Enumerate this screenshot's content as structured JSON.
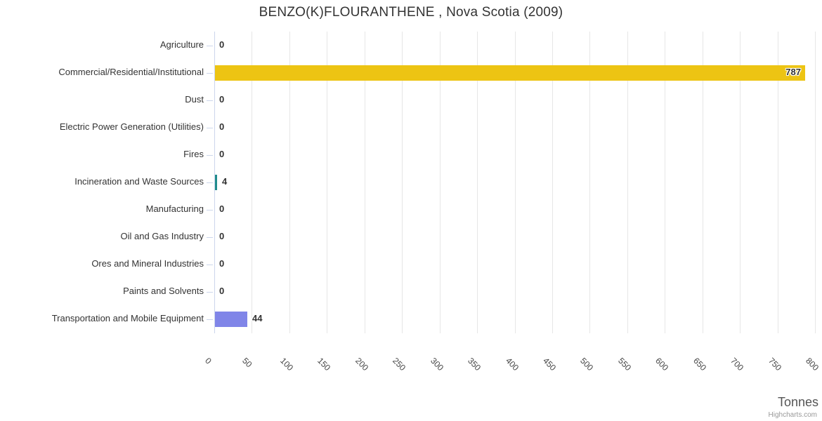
{
  "chart_data": {
    "type": "bar",
    "orientation": "horizontal",
    "title": "BENZO(K)FLOURANTHENE , Nova Scotia (2009)",
    "categories": [
      "Agriculture",
      "Commercial/Residential/Institutional",
      "Dust",
      "Electric Power Generation (Utilities)",
      "Fires",
      "Incineration and Waste Sources",
      "Manufacturing",
      "Oil and Gas Industry",
      "Ores and Mineral Industries",
      "Paints and Solvents",
      "Transportation and Mobile Equipment"
    ],
    "values": [
      0,
      787,
      0,
      0,
      0,
      4,
      0,
      0,
      0,
      0,
      44
    ],
    "data_labels": [
      "0",
      "787",
      "0",
      "0",
      "0",
      "4",
      "0",
      "0",
      "0",
      "0",
      "44"
    ],
    "point_colors": [
      null,
      "#edc413",
      null,
      null,
      null,
      "#218c8d",
      null,
      null,
      null,
      null,
      "#8085e8"
    ],
    "xlabel": "Tonnes",
    "ylabel": "",
    "value_axis": {
      "min": 0,
      "max": 800,
      "tick_interval": 50,
      "tick_labels": [
        "0",
        "50",
        "100",
        "150",
        "200",
        "250",
        "300",
        "350",
        "400",
        "450",
        "500",
        "550",
        "600",
        "650",
        "700",
        "750",
        "800"
      ]
    },
    "grid": "vertical-only",
    "legend": "none"
  },
  "credits": {
    "label": "Highcharts.com"
  },
  "colors": {
    "grid": "#e6e6e6",
    "axis_line": "#ccd6eb",
    "title_text": "#333333",
    "category_text": "#333333",
    "tick_label_text": "#444444",
    "data_label_text": "#333333",
    "axis_title_text": "#555555",
    "credits_text": "#999999",
    "background": "#ffffff"
  }
}
